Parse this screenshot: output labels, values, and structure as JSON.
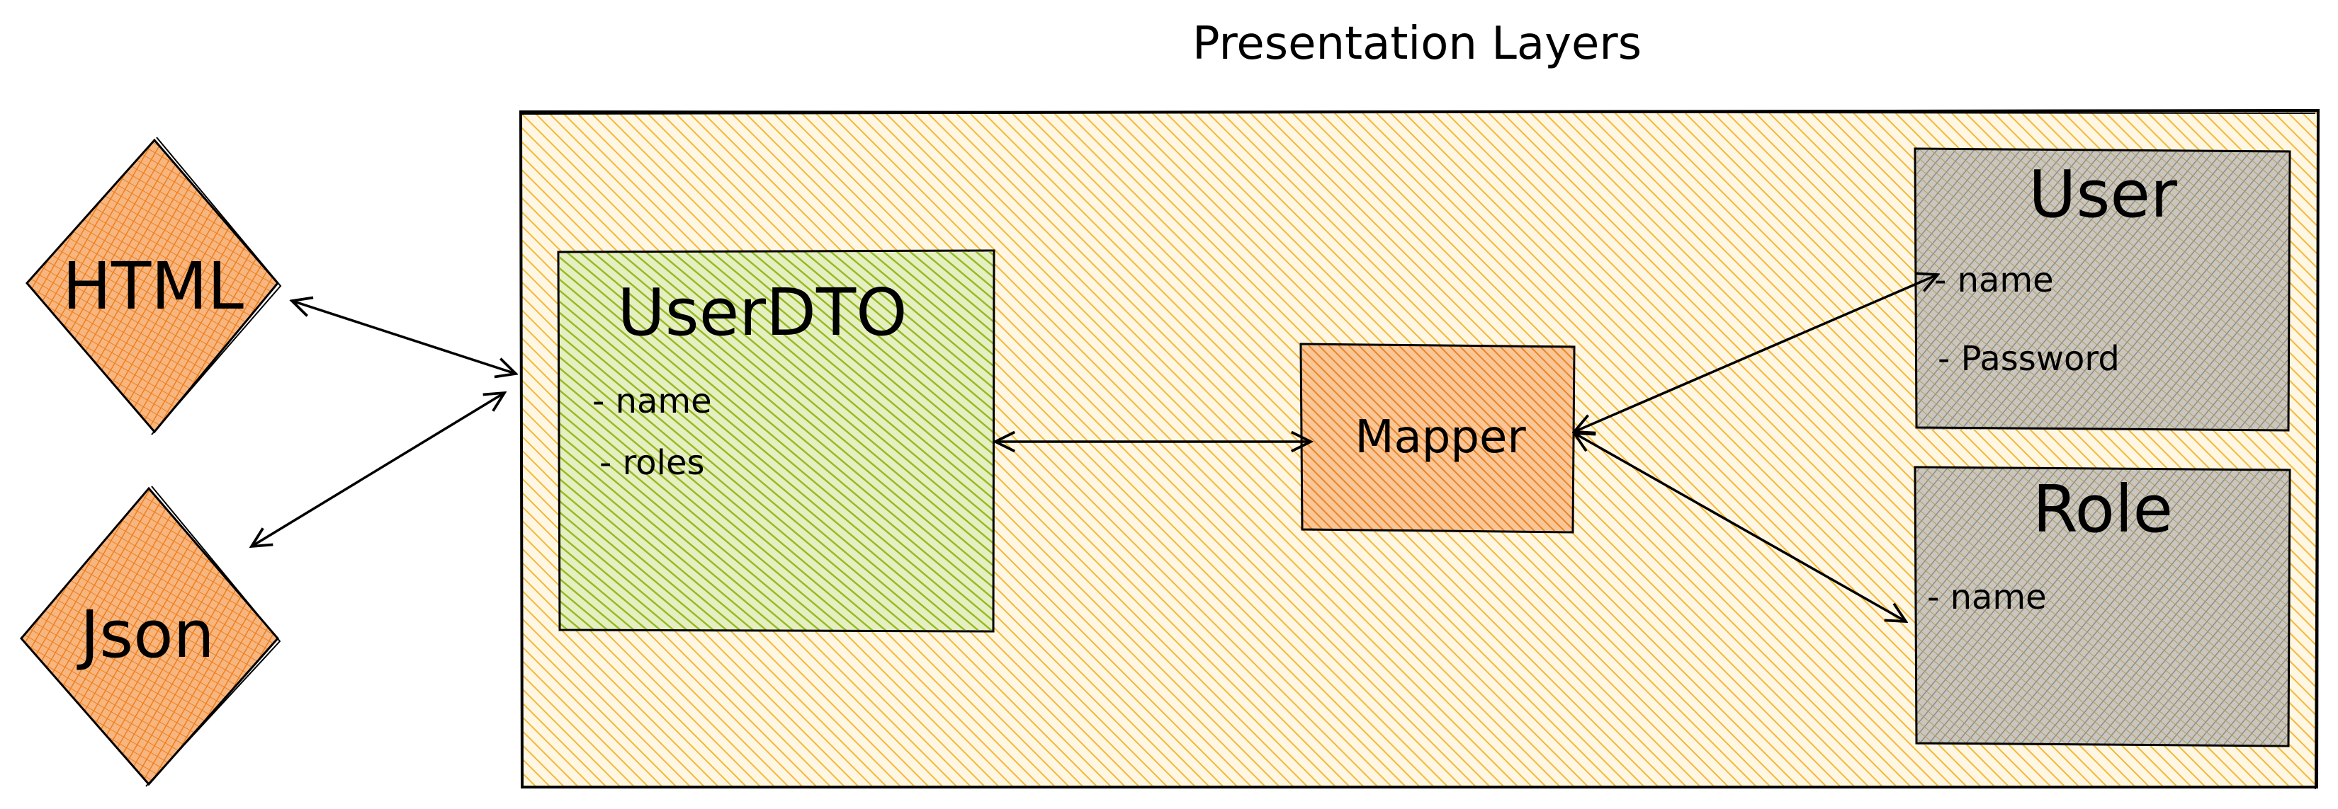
{
  "diagram": {
    "title": "Presentation Layers",
    "nodes": {
      "html": {
        "label": "HTML"
      },
      "json": {
        "label": "Json"
      },
      "userdto": {
        "title": "UserDTO",
        "fields": [
          "- name",
          "- roles"
        ]
      },
      "mapper": {
        "label": "Mapper"
      },
      "user": {
        "title": "User",
        "fields": [
          "- name",
          "- Password"
        ]
      },
      "role": {
        "title": "Role",
        "fields": [
          "- name"
        ]
      }
    },
    "edges": [
      {
        "from": "html",
        "to": "presentation-layer",
        "direction": "both"
      },
      {
        "from": "json",
        "to": "presentation-layer",
        "direction": "both"
      },
      {
        "from": "userdto",
        "to": "mapper",
        "direction": "both"
      },
      {
        "from": "mapper",
        "to": "user",
        "direction": "both"
      },
      {
        "from": "mapper",
        "to": "role",
        "direction": "both"
      }
    ],
    "colors": {
      "layer_fill": "#f5c24a",
      "userdto_fill": "#9cbf2a",
      "diamond_fill": "#f08a2a",
      "mapper_fill": "#f08a2a",
      "entity_fill": "#9a9a9a",
      "stroke": "#000000"
    }
  }
}
